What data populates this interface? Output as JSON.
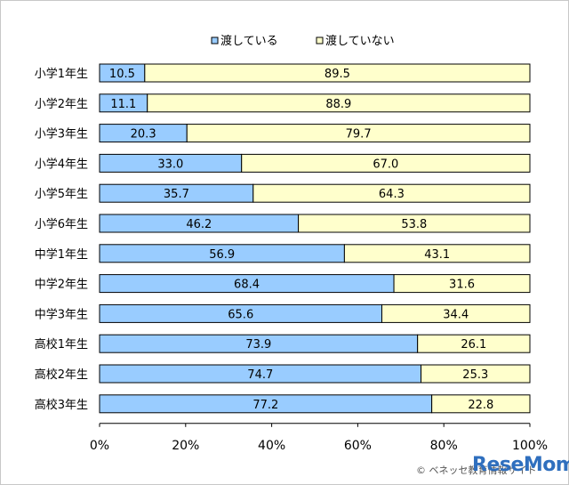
{
  "chart_data": {
    "type": "bar",
    "orientation": "horizontal",
    "stacked": true,
    "categories": [
      "小学1年生",
      "小学2年生",
      "小学3年生",
      "小学4年生",
      "小学5年生",
      "小学6年生",
      "中学1年生",
      "中学2年生",
      "中学3年生",
      "高校1年生",
      "高校2年生",
      "高校3年生"
    ],
    "series": [
      {
        "name": "渡している",
        "color": "#99ccff",
        "values": [
          10.5,
          11.1,
          20.3,
          33.0,
          35.7,
          46.2,
          56.9,
          68.4,
          65.6,
          73.9,
          74.7,
          77.2
        ]
      },
      {
        "name": "渡していない",
        "color": "#ffffcc",
        "values": [
          89.5,
          88.9,
          79.7,
          67.0,
          64.3,
          53.8,
          43.1,
          31.6,
          34.4,
          26.1,
          25.3,
          22.8
        ]
      }
    ],
    "x_ticks": [
      "0%",
      "20%",
      "40%",
      "60%",
      "80%",
      "100%"
    ],
    "xlim": [
      0,
      100
    ],
    "legend_position": "top",
    "grid": false
  },
  "footer": {
    "credit": "© ベネッセ教育情報サイト",
    "logo": "ReseMom"
  }
}
